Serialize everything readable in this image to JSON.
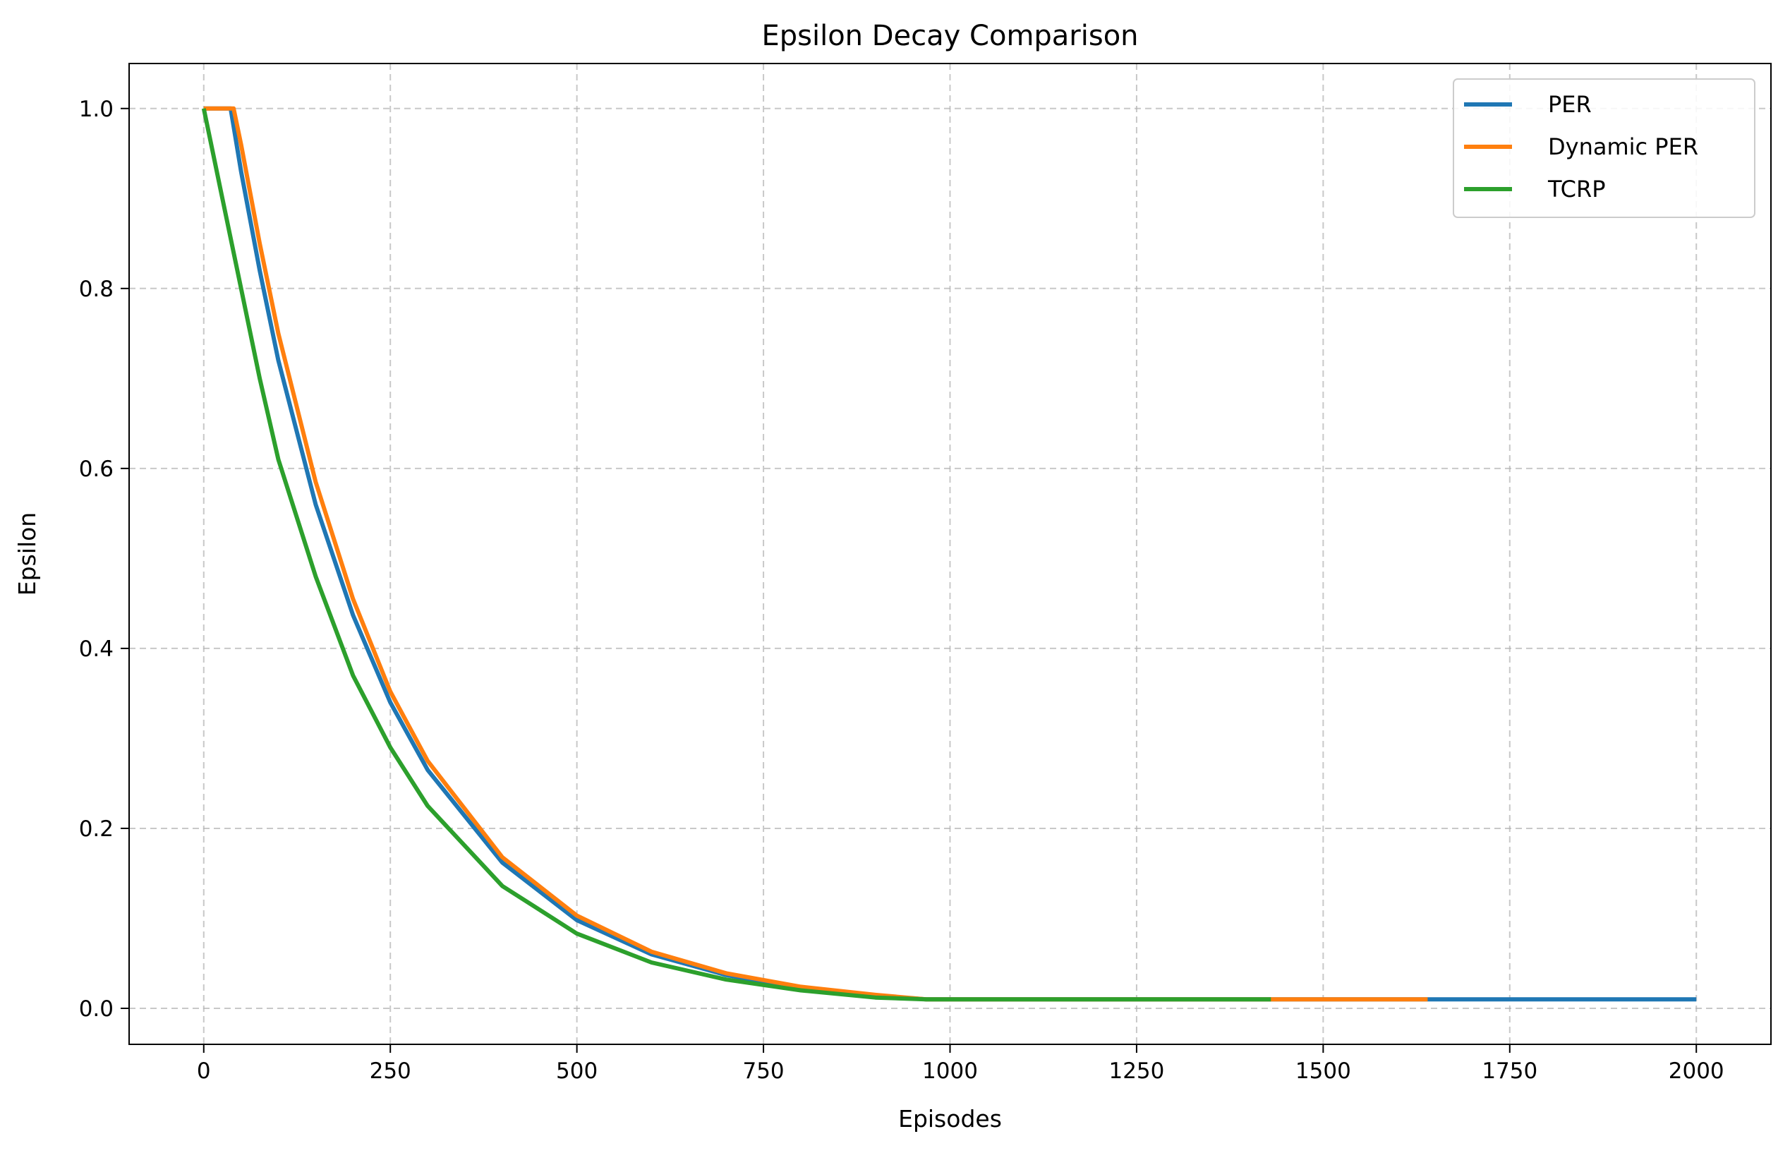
{
  "chart_data": {
    "type": "line",
    "title": "Epsilon Decay Comparison",
    "xlabel": "Episodes",
    "ylabel": "Epsilon",
    "xlim": [
      -100,
      2100
    ],
    "ylim": [
      -0.04,
      1.05
    ],
    "xticks": [
      0,
      250,
      500,
      750,
      1000,
      1250,
      1500,
      1750,
      2000
    ],
    "yticks": [
      0.0,
      0.2,
      0.4,
      0.6,
      0.8,
      1.0
    ],
    "xtick_labels": [
      "0",
      "250",
      "500",
      "750",
      "1000",
      "1250",
      "1500",
      "1750",
      "2000"
    ],
    "ytick_labels": [
      "0.0",
      "0.2",
      "0.4",
      "0.6",
      "0.8",
      "1.0"
    ],
    "grid": true,
    "legend_position": "top-right",
    "series": [
      {
        "name": "PER",
        "color": "#1f77b4",
        "x": [
          0,
          36,
          50,
          75,
          100,
          150,
          200,
          250,
          300,
          400,
          500,
          600,
          700,
          800,
          900,
          968,
          1200,
          1500,
          1640,
          2000
        ],
        "y": [
          1.0,
          1.0,
          0.93,
          0.82,
          0.72,
          0.56,
          0.437,
          0.34,
          0.265,
          0.162,
          0.098,
          0.06,
          0.037,
          0.022,
          0.014,
          0.01,
          0.01,
          0.01,
          0.01,
          0.01
        ]
      },
      {
        "name": "Dynamic PER",
        "color": "#ff7f0e",
        "x": [
          0,
          40,
          50,
          75,
          100,
          150,
          200,
          250,
          300,
          400,
          500,
          600,
          700,
          800,
          900,
          968,
          1200,
          1430,
          1640
        ],
        "y": [
          1.0,
          1.0,
          0.96,
          0.85,
          0.75,
          0.585,
          0.455,
          0.352,
          0.275,
          0.168,
          0.103,
          0.063,
          0.039,
          0.024,
          0.015,
          0.01,
          0.01,
          0.01,
          0.01
        ]
      },
      {
        "name": "TCRP",
        "color": "#2ca02c",
        "x": [
          0,
          25,
          50,
          75,
          100,
          150,
          200,
          250,
          300,
          400,
          500,
          600,
          700,
          800,
          900,
          968,
          1200,
          1430
        ],
        "y": [
          1.0,
          0.9,
          0.8,
          0.7,
          0.61,
          0.48,
          0.37,
          0.29,
          0.225,
          0.136,
          0.083,
          0.051,
          0.032,
          0.02,
          0.012,
          0.01,
          0.01,
          0.01
        ]
      }
    ]
  }
}
